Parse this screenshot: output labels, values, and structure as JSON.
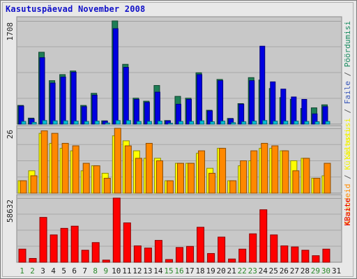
{
  "chart_data": {
    "type": "bar",
    "title": "Kasutuspäevad November 2008",
    "categories": [
      "1",
      "2",
      "3",
      "4",
      "5",
      "6",
      "7",
      "8",
      "9",
      "10",
      "11",
      "12",
      "13",
      "14",
      "15",
      "16",
      "17",
      "18",
      "19",
      "20",
      "21",
      "22",
      "23",
      "24",
      "25",
      "26",
      "27",
      "28",
      "29",
      "30",
      "31"
    ],
    "weekend_days": [
      "1",
      "2",
      "8",
      "9",
      "15",
      "16",
      "22",
      "23",
      "29",
      "30"
    ],
    "panels": [
      {
        "id": "top",
        "max_label": "1708",
        "ymax": 1708,
        "legend_right": [
          {
            "text": "Külastusi",
            "color": "#f2f200"
          },
          {
            "text": " / ",
            "color": "#5a5a5a"
          },
          {
            "text": "Faile",
            "color": "#3a58b8"
          },
          {
            "text": " / ",
            "color": "#5a5a5a"
          },
          {
            "text": "Pöördumisi",
            "color": "#178a5e"
          }
        ],
        "series": [
          {
            "name": "Pöördumisi",
            "color": "#1e7e56",
            "values": [
              310,
              100,
              1190,
              720,
              820,
              880,
              310,
              510,
              55,
              1708,
              990,
              430,
              380,
              640,
              60,
              460,
              430,
              850,
              230,
              740,
              95,
              340,
              770,
              730,
              590,
              440,
              410,
              260,
              270,
              320,
              0
            ]
          },
          {
            "name": "Faile",
            "color": "#0000e0",
            "values": [
              300,
              90,
              1100,
              680,
              780,
              860,
              290,
              480,
              50,
              1580,
              940,
              410,
              360,
              530,
              55,
              330,
              410,
              820,
              220,
              720,
              90,
              330,
              720,
              1290,
              700,
              580,
              450,
              410,
              170,
              290,
              0
            ]
          },
          {
            "name": "Külastusi",
            "color": "#00c0d8",
            "values": [
              45,
              30,
              60,
              55,
              55,
              50,
              45,
              50,
              20,
              60,
              60,
              45,
              45,
              50,
              15,
              45,
              45,
              55,
              40,
              50,
              25,
              40,
              50,
              60,
              50,
              50,
              50,
              45,
              40,
              45,
              0
            ]
          }
        ]
      },
      {
        "id": "mid",
        "max_label": "26",
        "ymax": 26,
        "legend_right": [
          {
            "text": "Aruandeid",
            "color": "#ff8c00"
          },
          {
            "text": " / ",
            "color": "#5a5a5a"
          },
          {
            "text": "Külastusi",
            "color": "#f2f200"
          }
        ],
        "series": [
          {
            "name": "Külastusi",
            "color": "#ffff00",
            "values": [
              5,
              9,
              24,
              20,
              18,
              17,
              9,
              11,
              8,
              23,
              21,
              17,
              14,
              14,
              5,
              12,
              12,
              16,
              10,
              18,
              5,
              11,
              13,
              18,
              18,
              17,
              13,
              14,
              6,
              7,
              0
            ]
          },
          {
            "name": "Aruandeid",
            "color": "#ff8800",
            "values": [
              5,
              7,
              25,
              24,
              20,
              19,
              12,
              11,
              6,
              26,
              19,
              14,
              20,
              13,
              5,
              12,
              12,
              17,
              8,
              18,
              5,
              13,
              17,
              20,
              19,
              17,
              9,
              14,
              6,
              12,
              0
            ]
          }
        ]
      },
      {
        "id": "bot",
        "max_label": "58632",
        "ymax": 58632,
        "legend_right": [
          {
            "text": "KBaite",
            "color": "#e80000"
          }
        ],
        "series": [
          {
            "name": "KBaite",
            "color": "#ff0000",
            "values": [
              12000,
              3500,
              41000,
              25000,
              31000,
              33000,
              11000,
              18000,
              2000,
              58632,
              36000,
              15000,
              13000,
              20000,
              2500,
              13500,
              14500,
              32000,
              8000,
              23000,
              3000,
              12000,
              26000,
              48000,
              25000,
              15000,
              14000,
              11000,
              6000,
              12000,
              0
            ]
          }
        ]
      }
    ]
  }
}
